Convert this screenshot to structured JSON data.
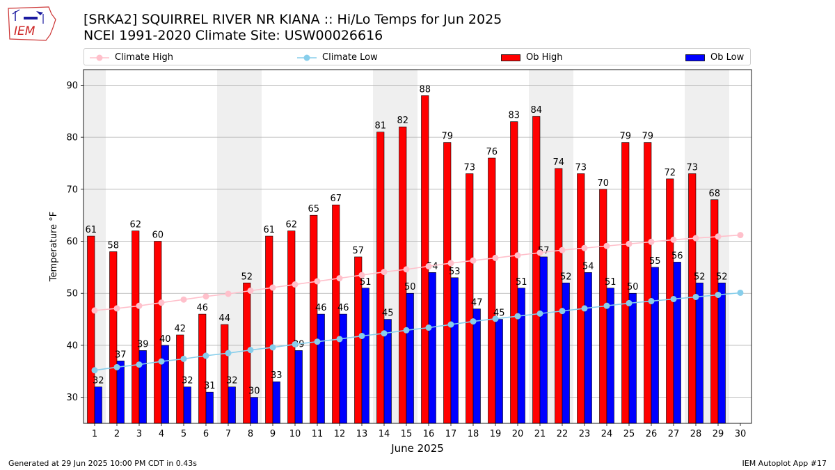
{
  "header": {
    "title_line1": "[SRKA2] SQUIRREL RIVER NR KIANA :: Hi/Lo Temps for Jun 2025",
    "title_line2": "NCEI 1991-2020 Climate Site: USW00026616",
    "logo_text": "IEM"
  },
  "footer": {
    "generated": "Generated at 29 Jun 2025 10:00 PM CDT in 0.43s",
    "app": "IEM Autoplot App #17"
  },
  "colors": {
    "ob_high": "#ff0000",
    "ob_low": "#0000ff",
    "climate_high": "#ffc0cb",
    "climate_low": "#87ceeb",
    "weekend_band": "#efefef",
    "grid": "#b0b0b0"
  },
  "chart_data": {
    "type": "bar",
    "xlabel": "June 2025",
    "ylabel": "Temperature °F",
    "ylim": [
      25,
      93
    ],
    "xlim": [
      0.5,
      30.5
    ],
    "yticks": [
      30,
      40,
      50,
      60,
      70,
      80,
      90
    ],
    "grid": "horizontal",
    "legend_position": "top",
    "categories": [
      "1",
      "2",
      "3",
      "4",
      "5",
      "6",
      "7",
      "8",
      "9",
      "10",
      "11",
      "12",
      "13",
      "14",
      "15",
      "16",
      "17",
      "18",
      "19",
      "20",
      "21",
      "22",
      "23",
      "24",
      "25",
      "26",
      "27",
      "28",
      "29",
      "30"
    ],
    "shaded_days": [
      1,
      7,
      8,
      14,
      15,
      21,
      22,
      28,
      29
    ],
    "series": [
      {
        "name": "Ob High",
        "kind": "bar",
        "color": "#ff0000",
        "values": [
          61,
          58,
          62,
          60,
          42,
          46,
          44,
          52,
          61,
          62,
          65,
          67,
          57,
          81,
          82,
          88,
          79,
          73,
          76,
          83,
          84,
          74,
          73,
          70,
          79,
          79,
          72,
          73,
          68,
          null
        ]
      },
      {
        "name": "Ob Low",
        "kind": "bar",
        "color": "#0000ff",
        "values": [
          32,
          37,
          39,
          40,
          32,
          31,
          32,
          30,
          33,
          39,
          46,
          46,
          51,
          45,
          50,
          54,
          53,
          47,
          45,
          51,
          57,
          52,
          54,
          51,
          50,
          55,
          56,
          52,
          52,
          null
        ]
      },
      {
        "name": "Climate High",
        "kind": "line",
        "color": "#ffc0cb",
        "values": [
          46.7,
          47.1,
          47.6,
          48.2,
          48.8,
          49.4,
          49.9,
          50.5,
          51.1,
          51.7,
          52.3,
          52.9,
          53.5,
          54.1,
          54.6,
          55.2,
          55.8,
          56.3,
          56.8,
          57.3,
          57.8,
          58.3,
          58.7,
          59.1,
          59.5,
          59.9,
          60.3,
          60.6,
          60.9,
          61.2
        ]
      },
      {
        "name": "Climate Low",
        "kind": "line",
        "color": "#87ceeb",
        "values": [
          35.2,
          35.8,
          36.3,
          36.9,
          37.4,
          38.0,
          38.5,
          39.1,
          39.6,
          40.2,
          40.7,
          41.2,
          41.8,
          42.3,
          42.9,
          43.4,
          44.0,
          44.6,
          45.1,
          45.6,
          46.1,
          46.6,
          47.1,
          47.6,
          48.1,
          48.5,
          48.9,
          49.3,
          49.7,
          50.1
        ]
      }
    ]
  }
}
